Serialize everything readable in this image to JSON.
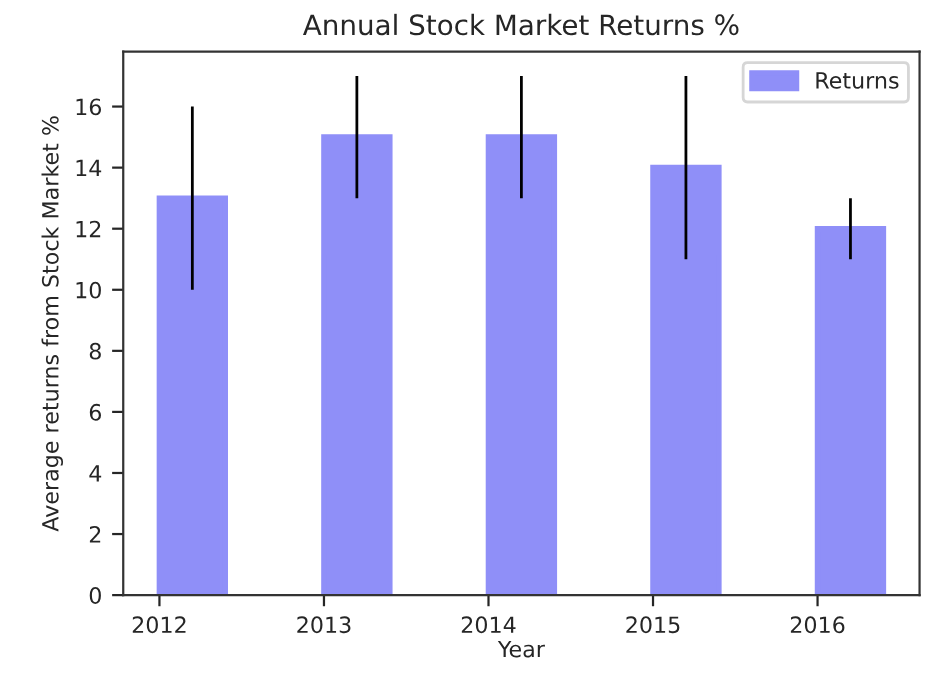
{
  "chart_data": {
    "type": "bar",
    "title": "Annual Stock Market Returns %",
    "xlabel": "Year",
    "ylabel": "Average returns from Stock Market %",
    "categories": [
      "2012",
      "2013",
      "2014",
      "2015",
      "2016"
    ],
    "series": [
      {
        "name": "Returns",
        "color": "#8f8ff8",
        "values": [
          13,
          15,
          15,
          14,
          12
        ],
        "errors": [
          3,
          2,
          2,
          3,
          1
        ]
      }
    ],
    "ylim": [
      0,
      17.8
    ],
    "yticks": [
      0,
      2,
      4,
      6,
      8,
      10,
      12,
      14,
      16
    ],
    "grid": false,
    "legend": "top right"
  }
}
